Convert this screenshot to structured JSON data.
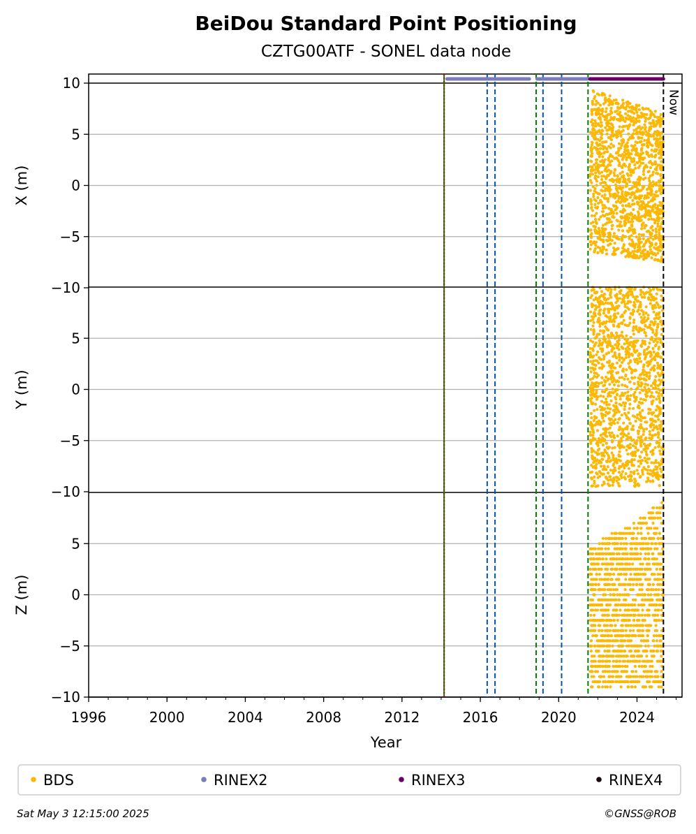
{
  "chart_data": {
    "type": "scatter",
    "title": "BeiDou Standard Point Positioning",
    "subtitle": "CZTG00ATF - SONEL data node",
    "xlabel": "Year",
    "xlim": [
      1996,
      2026.3
    ],
    "xticks": [
      "1996",
      "2000",
      "2004",
      "2008",
      "2012",
      "2016",
      "2020",
      "2024"
    ],
    "panels": [
      {
        "name": "x",
        "ylabel": "X (m)",
        "ylim": [
          -10,
          10
        ],
        "yticks": [
          "10",
          "5",
          "0",
          "−5",
          "−10"
        ],
        "spread_start": [
          -6.5,
          9.5
        ],
        "spread_end": [
          -7.5,
          7.0
        ]
      },
      {
        "name": "y",
        "ylabel": "Y (m)",
        "ylim": [
          -10,
          10
        ],
        "yticks": [
          "5",
          "0",
          "−5",
          "−10"
        ],
        "spread_start": [
          -9.5,
          10.0
        ],
        "spread_end": [
          -9.5,
          10.0
        ]
      },
      {
        "name": "z",
        "ylabel": "Z (m)",
        "ylim": [
          -10,
          10
        ],
        "yticks": [
          "5",
          "0",
          "−5",
          "−10"
        ],
        "spread_start": [
          -9.0,
          4.5
        ],
        "spread_end": [
          -9.0,
          9.0
        ]
      }
    ],
    "bds_series": {
      "name": "BDS",
      "color": "#fbb805",
      "x_start": 2021.6,
      "x_end": 2025.35
    },
    "events": [
      {
        "x": 2014.15,
        "color": "#008000",
        "style": "solid"
      },
      {
        "x": 2014.15,
        "color": "#cc0000",
        "style": "dotted"
      },
      {
        "x": 2016.35,
        "color": "#0055aa",
        "style": "dashed"
      },
      {
        "x": 2016.75,
        "color": "#0055aa",
        "style": "dashed"
      },
      {
        "x": 2018.85,
        "color": "#008000",
        "style": "dashed"
      },
      {
        "x": 2019.2,
        "color": "#0055aa",
        "style": "dashed"
      },
      {
        "x": 2020.15,
        "color": "#0055aa",
        "style": "dashed"
      },
      {
        "x": 2021.5,
        "color": "#008000",
        "style": "dashed"
      }
    ],
    "now_marker": {
      "x": 2025.35,
      "label": "Now"
    },
    "data_bars": [
      {
        "format": "RINEX2",
        "color": "#7b7bbd",
        "start": 2014.3,
        "end": 2018.5
      },
      {
        "format": "RINEX2",
        "color": "#7b7bbd",
        "start": 2018.9,
        "end": 2021.5
      },
      {
        "format": "RINEX3",
        "color": "#6a0065",
        "start": 2021.6,
        "end": 2025.35
      }
    ],
    "legend": {
      "placement": "bottom",
      "entries": [
        {
          "label": "BDS",
          "color": "#fbb805"
        },
        {
          "label": "RINEX2",
          "color": "#7b7bbd"
        },
        {
          "label": "RINEX3",
          "color": "#6a0065"
        },
        {
          "label": "RINEX4",
          "color": "#1a0a14"
        }
      ]
    },
    "grid": true
  },
  "footer": {
    "timestamp": "Sat May  3 12:15:00 2025",
    "credit": "©GNSS@ROB"
  }
}
